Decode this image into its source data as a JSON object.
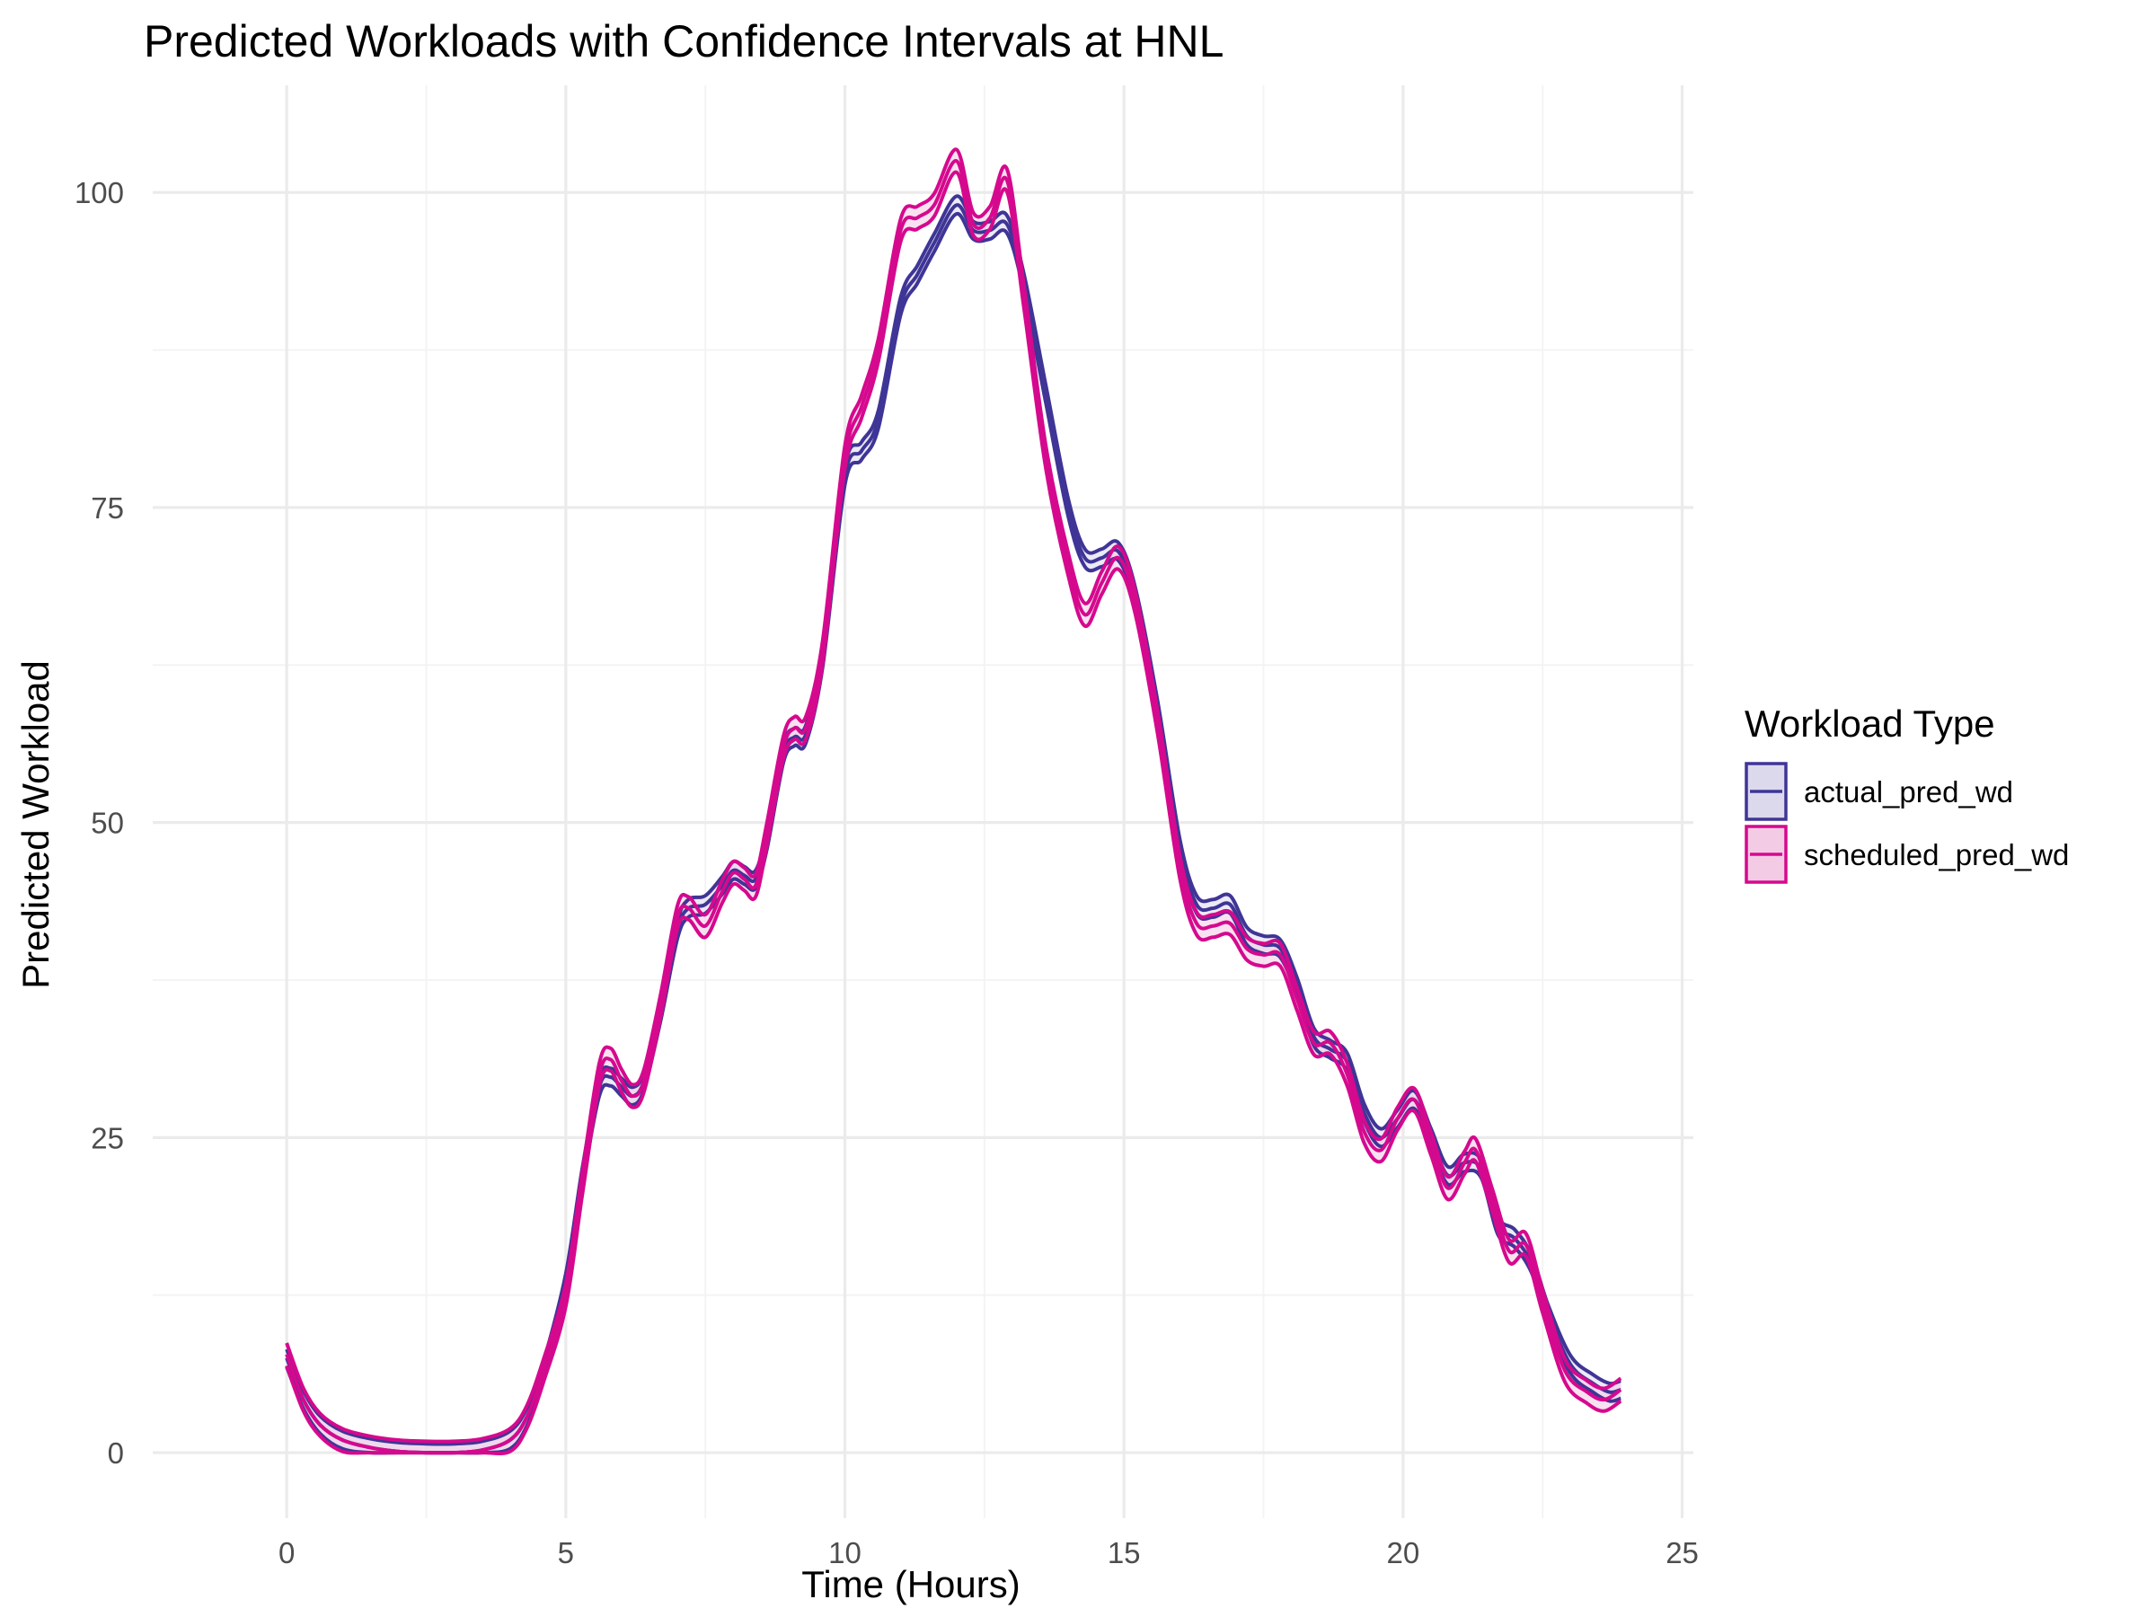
{
  "chart_data": {
    "type": "line",
    "title": "Predicted Workloads with Confidence Intervals at HNL",
    "xlabel": "Time (Hours)",
    "ylabel": "Predicted Workload",
    "xlim": [
      -2.4,
      25.2
    ],
    "ylim": [
      -5.2,
      108.5
    ],
    "x_ticks": [
      0,
      5,
      10,
      15,
      20,
      25
    ],
    "y_ticks": [
      0,
      25,
      50,
      75,
      100
    ],
    "x_tick_labels": [
      "0",
      "5",
      "10",
      "15",
      "20",
      "25"
    ],
    "y_tick_labels": [
      "0",
      "25",
      "50",
      "75",
      "100"
    ],
    "grid": true,
    "legend": {
      "title": "Workload Type",
      "position": "right",
      "entries": [
        "actual_pred_wd",
        "scheduled_pred_wd"
      ]
    },
    "series": [
      {
        "name": "actual_pred_wd",
        "color": "#3f3596",
        "fill": "#dcd9ec",
        "ci_halfwidth": 0.7,
        "points": [
          [
            0,
            7.5
          ],
          [
            0.3,
            4.2
          ],
          [
            0.6,
            2.2
          ],
          [
            1,
            1
          ],
          [
            1.5,
            0.4
          ],
          [
            2,
            0.1
          ],
          [
            2.5,
            0
          ],
          [
            3,
            0
          ],
          [
            3.5,
            0.2
          ],
          [
            4,
            1
          ],
          [
            4.3,
            2.8
          ],
          [
            4.6,
            6.5
          ],
          [
            5,
            13.5
          ],
          [
            5.3,
            22
          ],
          [
            5.6,
            29
          ],
          [
            5.8,
            29.8
          ],
          [
            6,
            29
          ],
          [
            6.2,
            28.3
          ],
          [
            6.4,
            29.5
          ],
          [
            6.7,
            35
          ],
          [
            7,
            41.5
          ],
          [
            7.2,
            43.2
          ],
          [
            7.5,
            43.5
          ],
          [
            7.8,
            45
          ],
          [
            8,
            46.2
          ],
          [
            8.2,
            45.8
          ],
          [
            8.4,
            45.5
          ],
          [
            8.6,
            48.5
          ],
          [
            8.9,
            55.5
          ],
          [
            9.1,
            56.8
          ],
          [
            9.3,
            57
          ],
          [
            9.6,
            63
          ],
          [
            10,
            77.5
          ],
          [
            10.3,
            79.5
          ],
          [
            10.6,
            82
          ],
          [
            11,
            91
          ],
          [
            11.3,
            93.5
          ],
          [
            11.6,
            96
          ],
          [
            12,
            99
          ],
          [
            12.3,
            97
          ],
          [
            12.6,
            97
          ],
          [
            12.9,
            97.5
          ],
          [
            13.2,
            93
          ],
          [
            13.6,
            84
          ],
          [
            14,
            75
          ],
          [
            14.3,
            71
          ],
          [
            14.6,
            71
          ],
          [
            14.9,
            71.5
          ],
          [
            15.2,
            68
          ],
          [
            15.6,
            59
          ],
          [
            16,
            48
          ],
          [
            16.3,
            43.5
          ],
          [
            16.6,
            43.2
          ],
          [
            16.9,
            43.5
          ],
          [
            17.2,
            41
          ],
          [
            17.5,
            40.3
          ],
          [
            17.8,
            40
          ],
          [
            18.1,
            37
          ],
          [
            18.4,
            33
          ],
          [
            18.7,
            32
          ],
          [
            19,
            31
          ],
          [
            19.3,
            27
          ],
          [
            19.6,
            25
          ],
          [
            19.9,
            26.5
          ],
          [
            20.2,
            28
          ],
          [
            20.5,
            25
          ],
          [
            20.8,
            22
          ],
          [
            21.1,
            23
          ],
          [
            21.4,
            22.5
          ],
          [
            21.7,
            18
          ],
          [
            22,
            17
          ],
          [
            22.3,
            15
          ],
          [
            22.6,
            11
          ],
          [
            23,
            7
          ],
          [
            23.4,
            5.5
          ],
          [
            23.7,
            4.8
          ],
          [
            23.9,
            5
          ]
        ]
      },
      {
        "name": "scheduled_pred_wd",
        "color": "#d5098e",
        "fill": "#f3cbe5",
        "ci_halfwidth": 0.9,
        "points": [
          [
            0,
            7.8
          ],
          [
            0.3,
            4.2
          ],
          [
            0.6,
            2.2
          ],
          [
            1,
            1
          ],
          [
            1.5,
            0.4
          ],
          [
            2,
            0.1
          ],
          [
            2.5,
            0
          ],
          [
            3,
            0
          ],
          [
            3.5,
            0.2
          ],
          [
            4,
            1
          ],
          [
            4.3,
            2.8
          ],
          [
            4.6,
            6.5
          ],
          [
            5,
            12.5
          ],
          [
            5.3,
            21.5
          ],
          [
            5.6,
            30
          ],
          [
            5.8,
            31.2
          ],
          [
            6,
            29.5
          ],
          [
            6.2,
            28.3
          ],
          [
            6.4,
            29.5
          ],
          [
            6.7,
            35.5
          ],
          [
            7,
            42.5
          ],
          [
            7.2,
            43.2
          ],
          [
            7.5,
            41.8
          ],
          [
            7.8,
            44.5
          ],
          [
            8,
            46
          ],
          [
            8.2,
            45.5
          ],
          [
            8.4,
            45
          ],
          [
            8.6,
            49
          ],
          [
            8.9,
            56
          ],
          [
            9.1,
            57.5
          ],
          [
            9.3,
            57.5
          ],
          [
            9.6,
            63.5
          ],
          [
            10,
            79
          ],
          [
            10.3,
            83
          ],
          [
            10.6,
            87.5
          ],
          [
            11,
            97
          ],
          [
            11.3,
            98
          ],
          [
            11.6,
            99
          ],
          [
            12,
            102.5
          ],
          [
            12.3,
            97.5
          ],
          [
            12.6,
            98
          ],
          [
            12.9,
            101
          ],
          [
            13.2,
            92
          ],
          [
            13.6,
            79
          ],
          [
            14,
            70.5
          ],
          [
            14.3,
            66.5
          ],
          [
            14.6,
            69
          ],
          [
            14.9,
            71
          ],
          [
            15.2,
            67.5
          ],
          [
            15.6,
            58
          ],
          [
            16,
            46.5
          ],
          [
            16.3,
            42
          ],
          [
            16.6,
            41.8
          ],
          [
            16.9,
            42
          ],
          [
            17.2,
            40
          ],
          [
            17.5,
            39.5
          ],
          [
            17.8,
            39.5
          ],
          [
            18.1,
            36
          ],
          [
            18.4,
            32.5
          ],
          [
            18.7,
            32.5
          ],
          [
            19,
            30
          ],
          [
            19.3,
            25.5
          ],
          [
            19.6,
            24
          ],
          [
            19.9,
            26.5
          ],
          [
            20.2,
            28
          ],
          [
            20.5,
            24.5
          ],
          [
            20.8,
            21
          ],
          [
            21.1,
            23
          ],
          [
            21.3,
            24
          ],
          [
            21.6,
            20
          ],
          [
            21.9,
            16
          ],
          [
            22.2,
            16.5
          ],
          [
            22.5,
            12
          ],
          [
            22.9,
            6.5
          ],
          [
            23.3,
            4.8
          ],
          [
            23.6,
            4.2
          ],
          [
            23.9,
            5
          ]
        ]
      }
    ]
  }
}
